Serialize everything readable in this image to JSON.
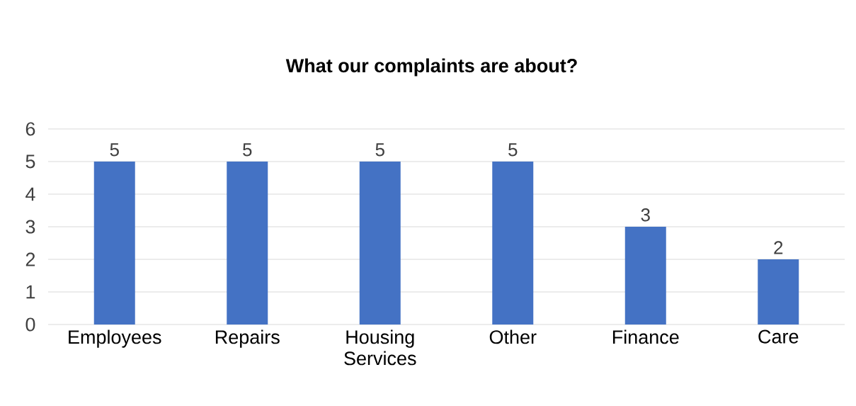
{
  "chart_data": {
    "type": "bar",
    "title": "What our complaints are about?",
    "categories": [
      "Employees",
      "Repairs",
      "Housing Services",
      "Other",
      "Finance",
      "Care"
    ],
    "values": [
      5,
      5,
      5,
      5,
      3,
      2
    ],
    "color": "#4472c4",
    "ylim": [
      0,
      6
    ],
    "yticks": [
      0,
      1,
      2,
      3,
      4,
      5,
      6
    ],
    "grid": "y",
    "data_labels": true
  }
}
